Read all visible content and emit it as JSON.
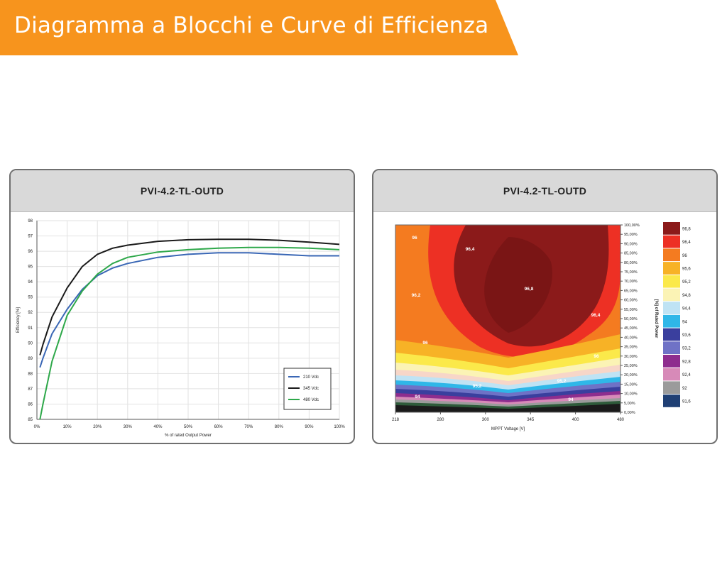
{
  "header": {
    "title": "Diagramma a Blocchi e Curve di Efficienza",
    "color": "#f7941d"
  },
  "panels": [
    {
      "title": "PVI-4.2-TL-OUTD"
    },
    {
      "title": "PVI-4.2-TL-OUTD"
    }
  ],
  "chart_data": [
    {
      "type": "line",
      "title": "PVI-4.2-TL-OUTD",
      "xlabel": "% of rated Output Power",
      "ylabel": "Efficiency [%]",
      "xlim": [
        0,
        100
      ],
      "ylim": [
        85,
        98
      ],
      "x_ticks": [
        "0%",
        "10%",
        "20%",
        "30%",
        "40%",
        "50%",
        "60%",
        "70%",
        "80%",
        "90%",
        "100%"
      ],
      "y_ticks": [
        "85",
        "86",
        "87",
        "88",
        "89",
        "90",
        "91",
        "92",
        "93",
        "94",
        "95",
        "96",
        "97",
        "98"
      ],
      "grid": true,
      "legend_position": "bottom-right",
      "x": [
        1,
        2,
        5,
        10,
        15,
        20,
        25,
        30,
        40,
        50,
        60,
        70,
        80,
        90,
        100
      ],
      "series": [
        {
          "name": "210 Vdc",
          "color": "#3a67b5",
          "values": [
            88.4,
            89.0,
            90.6,
            92.2,
            93.5,
            94.4,
            94.9,
            95.2,
            95.6,
            95.8,
            95.9,
            95.9,
            95.8,
            95.7,
            95.7
          ]
        },
        {
          "name": "345 Vdc",
          "color": "#1a1a1a",
          "values": [
            89.2,
            89.9,
            91.7,
            93.6,
            95.0,
            95.8,
            96.2,
            96.4,
            96.65,
            96.75,
            96.78,
            96.78,
            96.72,
            96.6,
            96.45
          ]
        },
        {
          "name": "480 Vdc",
          "color": "#2ea84a",
          "values": [
            84.8,
            86.0,
            88.8,
            91.8,
            93.4,
            94.5,
            95.2,
            95.6,
            95.95,
            96.1,
            96.2,
            96.25,
            96.25,
            96.2,
            96.1
          ]
        }
      ]
    },
    {
      "type": "heatmap",
      "title": "PVI-4.2-TL-OUTD",
      "xlabel": "MPPT Voltage [V]",
      "ylabel": "[%] of Rated Power",
      "x_ticks": [
        "218",
        "280",
        "300",
        "345",
        "400",
        "480"
      ],
      "y_ticks": [
        "100,00%",
        "95,00%",
        "90,00%",
        "85,00%",
        "80,00%",
        "75,00%",
        "70,00%",
        "65,00%",
        "60,00%",
        "55,00%",
        "50,00%",
        "45,00%",
        "40,00%",
        "35,00%",
        "30,00%",
        "25,00%",
        "20,00%",
        "15,00%",
        "10,00%",
        "5,00%",
        "0,00%"
      ],
      "contour_labels": [
        "96",
        "96,4",
        "96,8",
        "96,2",
        "96,4",
        "96",
        "96",
        "95,2",
        "95,2",
        "94",
        "94",
        "93",
        "92",
        "92"
      ],
      "legend_position": "right",
      "legend": [
        {
          "label": "96,8",
          "color": "#8b1a1a"
        },
        {
          "label": "96,4",
          "color": "#ed3024"
        },
        {
          "label": "96",
          "color": "#f47b20"
        },
        {
          "label": "95,6",
          "color": "#f7b226"
        },
        {
          "label": "95,2",
          "color": "#fbe94a"
        },
        {
          "label": "94,8",
          "color": "#fbf3b5"
        },
        {
          "label": "94,4",
          "color": "#bfe3f4"
        },
        {
          "label": "94",
          "color": "#2fb7e8"
        },
        {
          "label": "93,6",
          "color": "#3a3f9e"
        },
        {
          "label": "93,2",
          "color": "#6f72c6"
        },
        {
          "label": "92,8",
          "color": "#8e2d8e"
        },
        {
          "label": "92,4",
          "color": "#d78ab8"
        },
        {
          "label": "92",
          "color": "#9b9b9b"
        },
        {
          "label": "91,6",
          "color": "#1f3f74"
        }
      ]
    }
  ]
}
